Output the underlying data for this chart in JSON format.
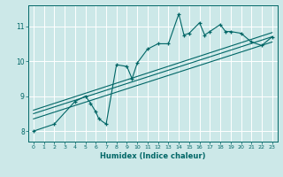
{
  "title": "",
  "xlabel": "Humidex (Indice chaleur)",
  "bg_color": "#cce8e8",
  "grid_color": "#ffffff",
  "line_color": "#006666",
  "xlim": [
    -0.5,
    23.5
  ],
  "ylim": [
    7.7,
    11.6
  ],
  "xticks": [
    0,
    1,
    2,
    3,
    4,
    5,
    6,
    7,
    8,
    9,
    10,
    11,
    12,
    13,
    14,
    15,
    16,
    17,
    18,
    19,
    20,
    21,
    22,
    23
  ],
  "yticks": [
    8,
    9,
    10,
    11
  ],
  "data_x": [
    0,
    2,
    4,
    5,
    5.5,
    6,
    6.3,
    7,
    8,
    9,
    9.5,
    10,
    11,
    12,
    13,
    14,
    14.5,
    15,
    16,
    16.5,
    17,
    18,
    18.5,
    19,
    20,
    21,
    22,
    23
  ],
  "data_y": [
    8.0,
    8.2,
    8.85,
    9.0,
    8.8,
    8.55,
    8.35,
    8.2,
    9.9,
    9.85,
    9.5,
    9.95,
    10.35,
    10.5,
    10.5,
    11.35,
    10.75,
    10.8,
    11.1,
    10.75,
    10.85,
    11.05,
    10.85,
    10.85,
    10.8,
    10.55,
    10.45,
    10.7
  ],
  "trend1_x": [
    0,
    23
  ],
  "trend1_y": [
    8.35,
    10.55
  ],
  "trend2_x": [
    0,
    23
  ],
  "trend2_y": [
    8.5,
    10.7
  ],
  "trend3_x": [
    0,
    23
  ],
  "trend3_y": [
    8.6,
    10.82
  ]
}
